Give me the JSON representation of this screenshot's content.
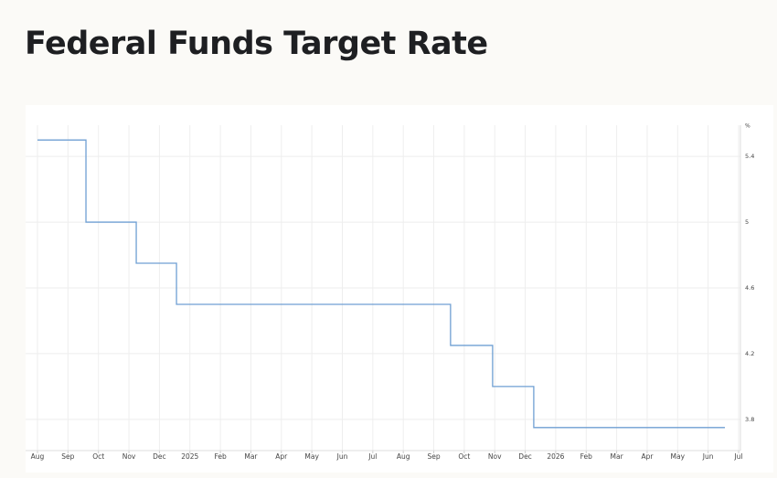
{
  "chart_data": {
    "type": "line",
    "step": "post",
    "title": "Federal Funds Target Rate",
    "y_label": "%",
    "x": [
      0,
      1.59,
      3.24,
      4.56,
      13.55,
      14.93,
      16.28,
      22.55
    ],
    "series": [
      {
        "color": "#6f9fd3",
        "values": [
          5.5,
          5.0,
          4.75,
          4.5,
          4.25,
          4.0,
          3.75,
          3.75
        ]
      }
    ],
    "xlim": [
      -0.39,
      23.06
    ],
    "xticks": [
      {
        "value": 0,
        "label": "Aug"
      },
      {
        "value": 1,
        "label": "Sep"
      },
      {
        "value": 2,
        "label": "Oct"
      },
      {
        "value": 3,
        "label": "Nov"
      },
      {
        "value": 4,
        "label": "Dec"
      },
      {
        "value": 5,
        "label": "2025"
      },
      {
        "value": 6,
        "label": "Feb"
      },
      {
        "value": 7,
        "label": "Mar"
      },
      {
        "value": 8,
        "label": "Apr"
      },
      {
        "value": 9,
        "label": "May"
      },
      {
        "value": 10,
        "label": "Jun"
      },
      {
        "value": 11,
        "label": "Jul"
      },
      {
        "value": 12,
        "label": "Aug"
      },
      {
        "value": 13,
        "label": "Sep"
      },
      {
        "value": 14,
        "label": "Oct"
      },
      {
        "value": 15,
        "label": "Nov"
      },
      {
        "value": 16,
        "label": "Dec"
      },
      {
        "value": 17,
        "label": "2026"
      },
      {
        "value": 18,
        "label": "Feb"
      },
      {
        "value": 19,
        "label": "Mar"
      },
      {
        "value": 20,
        "label": "Apr"
      },
      {
        "value": 21,
        "label": "May"
      },
      {
        "value": 22,
        "label": "Jun"
      },
      {
        "value": 23,
        "label": "Jul"
      }
    ],
    "ylim": [
      3.61,
      5.59
    ],
    "yticks": [
      3.8,
      4.2,
      4.6,
      5.0,
      5.4
    ],
    "grid": true,
    "y_axis_side": "right"
  }
}
